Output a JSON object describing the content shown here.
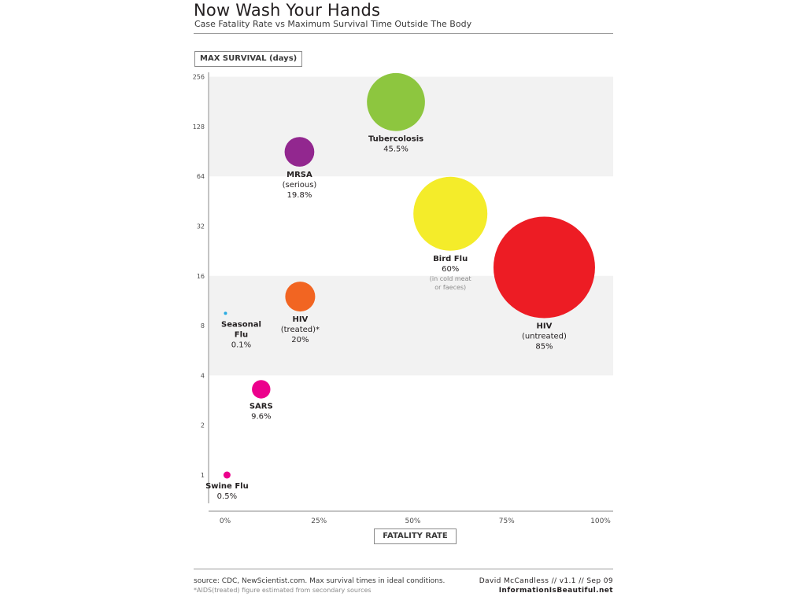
{
  "title": "Now Wash Your Hands",
  "subtitle": "Case Fatality Rate vs Maximum Survival Time Outside The Body",
  "y_axis_box": "MAX SURVIVAL (days)",
  "x_axis_box": "FATALITY RATE",
  "footer": {
    "source": "source: CDC, NewScientist.com. Max survival times in ideal conditions.",
    "note": "*AIDS(treated) figure estimated from secondary sources",
    "author": "David McCandless // v1.1 // Sep 09",
    "site": "InformationIsBeautiful.net"
  },
  "chart_data": {
    "type": "scatter",
    "title": "Now Wash Your Hands",
    "subtitle": "Case Fatality Rate vs Maximum Survival Time Outside The Body",
    "xlabel": "FATALITY RATE",
    "ylabel": "MAX SURVIVAL (days)",
    "x_unit": "percent",
    "xlim": [
      0,
      100
    ],
    "x_ticks": [
      0,
      25,
      50,
      75,
      100
    ],
    "x_tick_labels": [
      "0%",
      "25%",
      "50%",
      "75%",
      "100%"
    ],
    "y_scale": "log2",
    "ylim": [
      0.7,
      320
    ],
    "y_ticks": [
      1,
      2,
      4,
      8,
      16,
      32,
      64,
      128,
      256
    ],
    "y_tick_labels": [
      "1",
      "2",
      "4",
      "8",
      "16",
      "32",
      "64",
      "128",
      "256"
    ],
    "y_bands": [
      [
        64,
        256
      ],
      [
        4,
        16
      ]
    ],
    "band_color": "#f2f2f2",
    "bubble_size_encodes": "fatality rate",
    "points": [
      {
        "name": "Tubercolosis",
        "sub": "",
        "label": "45.5%",
        "x": 45.5,
        "y": 180,
        "color": "#8dc63f",
        "extra": ""
      },
      {
        "name": "MRSA",
        "sub": "(serious)",
        "label": "19.8%",
        "x": 19.8,
        "y": 90,
        "color": "#92278f",
        "extra": ""
      },
      {
        "name": "Bird Flu",
        "sub": "",
        "label": "60%",
        "x": 60,
        "y": 38,
        "color": "#f4ec2a",
        "extra1": "(in cold meat",
        "extra2": "or faeces)"
      },
      {
        "name": "HIV",
        "sub": "(untreated)",
        "label": "85%",
        "x": 85,
        "y": 18,
        "color": "#ed1c24",
        "extra": ""
      },
      {
        "name": "HIV",
        "sub": "(treated)*",
        "label": "20%",
        "x": 20,
        "y": 12,
        "color": "#f26522",
        "extra": ""
      },
      {
        "name": "Seasonal",
        "sub": "Flu",
        "label": "0.1%",
        "x": 0.1,
        "y": 9.5,
        "color": "#29abe2",
        "extra": ""
      },
      {
        "name": "SARS",
        "sub": "",
        "label": "9.6%",
        "x": 9.6,
        "y": 3.3,
        "color": "#ec008c",
        "extra": ""
      },
      {
        "name": "Swine Flu",
        "sub": "",
        "label": "0.5%",
        "x": 0.5,
        "y": 1,
        "color": "#ec008c",
        "extra": ""
      }
    ]
  }
}
